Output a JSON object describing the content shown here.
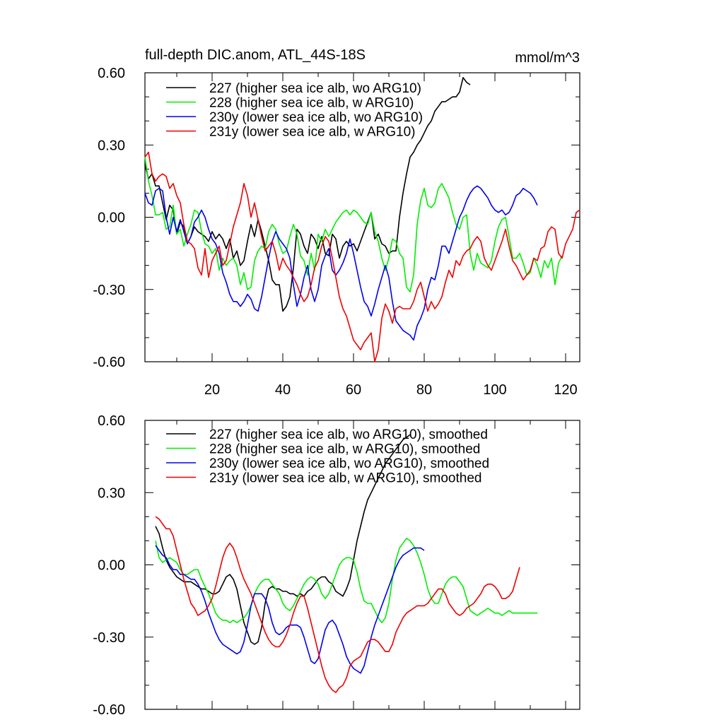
{
  "title": "full-depth DIC.anom, ATL_44S-18S",
  "units": "mmol/m^3",
  "chart_data": [
    {
      "type": "line",
      "panel": "top",
      "title": "full-depth DIC.anom, ATL_44S-18S",
      "units": "mmol/m^3",
      "xlim": [
        1,
        124
      ],
      "ylim": [
        -0.6,
        0.6
      ],
      "xticks": [
        20,
        40,
        60,
        80,
        100,
        120
      ],
      "xticklabels": [
        "20",
        "40",
        "60",
        "80",
        "100",
        "120"
      ],
      "show_xticklabels": true,
      "yticks": [
        -0.6,
        -0.3,
        0.0,
        0.3,
        0.6
      ],
      "yticklabels": [
        "-0.60",
        "-0.30",
        "0.00",
        "0.30",
        "0.60"
      ],
      "legend_position": "top-left",
      "series": [
        {
          "name": "227 (higher sea ice alb, wo ARG10)",
          "color": "#000000",
          "x_start": 1,
          "values": [
            0.22,
            0.16,
            0.18,
            0.13,
            0.13,
            0.06,
            -0.01,
            0.05,
            0.03,
            -0.07,
            -0.02,
            -0.04,
            -0.11,
            -0.08,
            -0.04,
            -0.06,
            -0.07,
            -0.08,
            -0.1,
            -0.06,
            -0.09,
            -0.07,
            -0.09,
            -0.13,
            -0.09,
            -0.17,
            -0.14,
            -0.2,
            -0.18,
            -0.1,
            -0.03,
            -0.08,
            -0.01,
            -0.06,
            -0.12,
            -0.18,
            -0.26,
            -0.28,
            -0.28,
            -0.39,
            -0.37,
            -0.33,
            -0.21,
            -0.05,
            -0.07,
            -0.12,
            -0.15,
            -0.07,
            -0.09,
            -0.13,
            -0.08,
            -0.15,
            -0.16,
            -0.07,
            -0.09,
            -0.17,
            -0.12,
            -0.1,
            -0.12,
            -0.11,
            -0.14,
            -0.1,
            -0.06,
            -0.02,
            0.02,
            -0.09,
            -0.07,
            -0.11,
            -0.12,
            -0.15,
            -0.14,
            -0.14,
            0.0,
            0.1,
            0.18,
            0.25,
            0.27,
            0.3,
            0.32,
            0.35,
            0.38,
            0.4,
            0.44,
            0.46,
            0.48,
            0.48,
            0.49,
            0.5,
            0.5,
            0.52,
            0.58,
            0.56,
            0.55
          ]
        },
        {
          "name": "228 (higher sea ice alb, w ARG10)",
          "color": "#00ee00",
          "x_start": 1,
          "values": [
            0.25,
            0.15,
            0.09,
            0.01,
            0.01,
            0.02,
            -0.05,
            -0.04,
            0.05,
            -0.07,
            -0.05,
            -0.12,
            -0.07,
            -0.03,
            0.03,
            0.02,
            -0.06,
            -0.11,
            -0.12,
            -0.15,
            -0.13,
            -0.22,
            -0.17,
            -0.2,
            -0.18,
            -0.17,
            -0.2,
            -0.28,
            -0.23,
            -0.3,
            -0.29,
            -0.18,
            -0.14,
            -0.12,
            -0.13,
            -0.06,
            -0.03,
            -0.05,
            -0.11,
            -0.15,
            -0.14,
            -0.08,
            -0.03,
            -0.07,
            -0.16,
            -0.18,
            -0.24,
            -0.15,
            -0.22,
            -0.07,
            -0.1,
            -0.05,
            -0.08,
            -0.05,
            -0.02,
            0.0,
            0.02,
            0.03,
            0.01,
            0.03,
            0.02,
            0.0,
            -0.02,
            -0.03,
            0.02,
            -0.06,
            -0.1,
            -0.17,
            -0.22,
            -0.17,
            -0.09,
            -0.1,
            -0.15,
            -0.17,
            -0.29,
            -0.31,
            -0.24,
            -0.03,
            0.07,
            0.12,
            0.05,
            0.04,
            0.06,
            0.12,
            0.14,
            0.11,
            0.08,
            0.02,
            -0.03,
            -0.05,
            0.0,
            0.01,
            -0.15,
            -0.22,
            -0.15,
            -0.19,
            -0.2,
            -0.21,
            -0.18,
            -0.1,
            -0.04,
            -0.01,
            0.0,
            -0.08,
            -0.17,
            -0.17,
            -0.15,
            -0.19,
            -0.24,
            -0.23,
            -0.17,
            -0.2,
            -0.25,
            -0.18,
            -0.21,
            -0.17,
            -0.28,
            -0.19,
            -0.16
          ]
        },
        {
          "name": "230y (lower sea ice alb, wo ARG10)",
          "color": "#0000ee",
          "x_start": 1,
          "values": [
            0.1,
            0.06,
            0.05,
            0.11,
            0.12,
            0.11,
            0.0,
            -0.07,
            0.0,
            -0.06,
            -0.01,
            -0.06,
            -0.11,
            -0.08,
            -0.02,
            0.0,
            0.03,
            0.0,
            -0.05,
            -0.09,
            -0.11,
            -0.15,
            -0.23,
            -0.27,
            -0.32,
            -0.35,
            -0.35,
            -0.37,
            -0.35,
            -0.32,
            -0.34,
            -0.38,
            -0.39,
            -0.33,
            -0.25,
            -0.17,
            -0.1,
            -0.06,
            -0.09,
            -0.11,
            -0.13,
            -0.17,
            -0.28,
            -0.37,
            -0.32,
            -0.25,
            -0.2,
            -0.3,
            -0.35,
            -0.3,
            -0.2,
            -0.16,
            -0.13,
            -0.22,
            -0.24,
            -0.22,
            -0.19,
            -0.15,
            -0.09,
            -0.15,
            -0.22,
            -0.29,
            -0.35,
            -0.37,
            -0.41,
            -0.36,
            -0.3,
            -0.25,
            -0.2,
            -0.25,
            -0.35,
            -0.43,
            -0.45,
            -0.47,
            -0.48,
            -0.49,
            -0.51,
            -0.45,
            -0.42,
            -0.38,
            -0.3,
            -0.25,
            -0.26,
            -0.2,
            -0.12,
            -0.12,
            -0.15,
            -0.1,
            -0.05,
            0.0,
            0.03,
            0.07,
            0.1,
            0.12,
            0.13,
            0.12,
            0.1,
            0.08,
            0.05,
            0.03,
            0.02,
            0.03,
            0.01,
            0.02,
            0.05,
            0.09,
            0.1,
            0.12,
            0.11,
            0.1,
            0.08,
            0.05
          ]
        },
        {
          "name": "231y (lower sea ice alb, w ARG10)",
          "color": "#ee0000",
          "x_start": 1,
          "values": [
            0.25,
            0.27,
            0.18,
            0.15,
            0.17,
            0.18,
            0.17,
            0.12,
            0.14,
            0.09,
            0.06,
            -0.03,
            -0.1,
            -0.11,
            -0.13,
            -0.21,
            -0.24,
            -0.13,
            -0.25,
            -0.18,
            -0.15,
            -0.12,
            -0.2,
            -0.18,
            -0.11,
            -0.04,
            0.01,
            0.06,
            0.14,
            0.09,
            0.0,
            0.06,
            -0.01,
            -0.08,
            -0.14,
            -0.12,
            -0.1,
            -0.15,
            -0.22,
            -0.17,
            -0.2,
            -0.22,
            -0.25,
            -0.28,
            -0.32,
            -0.35,
            -0.33,
            -0.28,
            -0.21,
            -0.18,
            -0.12,
            -0.08,
            -0.1,
            -0.17,
            -0.25,
            -0.33,
            -0.38,
            -0.41,
            -0.46,
            -0.51,
            -0.53,
            -0.55,
            -0.52,
            -0.5,
            -0.48,
            -0.6,
            -0.55,
            -0.42,
            -0.36,
            -0.39,
            -0.44,
            -0.38,
            -0.37,
            -0.38,
            -0.38,
            -0.38,
            -0.35,
            -0.3,
            -0.27,
            -0.33,
            -0.39,
            -0.35,
            -0.38,
            -0.36,
            -0.33,
            -0.27,
            -0.22,
            -0.25,
            -0.18,
            -0.2,
            -0.16,
            -0.14,
            -0.13,
            -0.1,
            -0.08,
            -0.1,
            -0.17,
            -0.2,
            -0.22,
            -0.18,
            -0.14,
            -0.1,
            -0.05,
            -0.12,
            -0.18,
            -0.2,
            -0.23,
            -0.26,
            -0.24,
            -0.22,
            -0.17,
            -0.18,
            -0.13,
            -0.12,
            -0.06,
            -0.04,
            -0.05,
            -0.15,
            -0.17,
            -0.11,
            -0.08,
            -0.05,
            0.02,
            0.03
          ]
        }
      ]
    },
    {
      "type": "line",
      "panel": "bottom",
      "xlim": [
        1,
        124
      ],
      "ylim": [
        -0.6,
        0.6
      ],
      "xticks": [
        20,
        40,
        60,
        80,
        100,
        120
      ],
      "show_xticklabels": false,
      "yticks": [
        -0.6,
        -0.3,
        0.0,
        0.3,
        0.6
      ],
      "yticklabels": [
        "-0.60",
        "-0.30",
        "0.00",
        "0.30",
        "0.60"
      ],
      "legend_position": "top-left",
      "series": [
        {
          "name": "227 (higher sea ice alb, wo ARG10), smoothed",
          "color": "#000000",
          "x_start": 4,
          "values": [
            0.16,
            0.13,
            0.07,
            0.02,
            -0.01,
            -0.03,
            -0.05,
            -0.06,
            -0.07,
            -0.07,
            -0.07,
            -0.08,
            -0.09,
            -0.1,
            -0.1,
            -0.11,
            -0.12,
            -0.12,
            -0.11,
            -0.08,
            -0.05,
            -0.04,
            -0.06,
            -0.1,
            -0.17,
            -0.24,
            -0.28,
            -0.32,
            -0.33,
            -0.32,
            -0.26,
            -0.16,
            -0.1,
            -0.09,
            -0.1,
            -0.1,
            -0.11,
            -0.11,
            -0.12,
            -0.12,
            -0.13,
            -0.12,
            -0.13,
            -0.11,
            -0.1,
            -0.08,
            -0.06,
            -0.05,
            -0.05,
            -0.07,
            -0.08,
            -0.11,
            -0.12,
            -0.13,
            -0.1,
            -0.06,
            0.02,
            0.1,
            0.16,
            0.22,
            0.27,
            0.3,
            0.33,
            0.36,
            0.39,
            0.42,
            0.44,
            0.46,
            0.48,
            0.5,
            0.52,
            0.53,
            0.54
          ]
        },
        {
          "name": "228 (higher sea ice alb, w ARG10), smoothed",
          "color": "#00ee00",
          "x_start": 4,
          "values": [
            0.1,
            0.03,
            0.01,
            0.02,
            0.03,
            0.02,
            0.01,
            -0.02,
            -0.04,
            -0.04,
            -0.03,
            -0.02,
            -0.02,
            -0.06,
            -0.09,
            -0.12,
            -0.16,
            -0.2,
            -0.22,
            -0.23,
            -0.23,
            -0.24,
            -0.23,
            -0.24,
            -0.23,
            -0.22,
            -0.2,
            -0.17,
            -0.12,
            -0.09,
            -0.07,
            -0.06,
            -0.06,
            -0.08,
            -0.1,
            -0.12,
            -0.16,
            -0.18,
            -0.19,
            -0.17,
            -0.14,
            -0.11,
            -0.08,
            -0.06,
            -0.05,
            -0.06,
            -0.08,
            -0.12,
            -0.14,
            -0.12,
            -0.08,
            -0.04,
            0.0,
            0.02,
            0.03,
            0.03,
            0.02,
            -0.03,
            -0.1,
            -0.15,
            -0.16,
            -0.16,
            -0.19,
            -0.22,
            -0.24,
            -0.22,
            -0.16,
            -0.06,
            0.02,
            0.07,
            0.09,
            0.11,
            0.1,
            0.08,
            0.05,
            0.01,
            -0.04,
            -0.1,
            -0.14,
            -0.16,
            -0.16,
            -0.12,
            -0.08,
            -0.06,
            -0.05,
            -0.05,
            -0.07,
            -0.09,
            -0.14,
            -0.19,
            -0.2,
            -0.21,
            -0.2,
            -0.19,
            -0.18,
            -0.19,
            -0.2,
            -0.2,
            -0.21,
            -0.2,
            -0.19,
            -0.2,
            -0.2,
            -0.2,
            -0.2,
            -0.2,
            -0.2,
            -0.2,
            -0.2
          ]
        },
        {
          "name": "230y (lower sea ice alb, wo ARG10), smoothed",
          "color": "#0000ee",
          "x_start": 4,
          "values": [
            0.08,
            0.06,
            0.04,
            0.03,
            0.0,
            -0.02,
            -0.02,
            -0.04,
            -0.04,
            -0.05,
            -0.06,
            -0.06,
            -0.08,
            -0.11,
            -0.15,
            -0.2,
            -0.24,
            -0.28,
            -0.31,
            -0.33,
            -0.34,
            -0.35,
            -0.36,
            -0.37,
            -0.36,
            -0.32,
            -0.25,
            -0.17,
            -0.12,
            -0.12,
            -0.12,
            -0.14,
            -0.18,
            -0.24,
            -0.28,
            -0.29,
            -0.28,
            -0.26,
            -0.25,
            -0.25,
            -0.25,
            -0.26,
            -0.3,
            -0.35,
            -0.4,
            -0.41,
            -0.39,
            -0.33,
            -0.27,
            -0.24,
            -0.23,
            -0.25,
            -0.29,
            -0.33,
            -0.38,
            -0.41,
            -0.43,
            -0.44,
            -0.45,
            -0.42,
            -0.36,
            -0.3,
            -0.25,
            -0.21,
            -0.17,
            -0.13,
            -0.09,
            -0.05,
            -0.01,
            0.02,
            0.04,
            0.05,
            0.06,
            0.07,
            0.07,
            0.07,
            0.06
          ]
        },
        {
          "name": "231y (lower sea ice alb, w ARG10), smoothed",
          "color": "#ee0000",
          "x_start": 4,
          "values": [
            0.2,
            0.19,
            0.17,
            0.15,
            0.15,
            0.12,
            0.06,
            0.0,
            -0.06,
            -0.11,
            -0.16,
            -0.18,
            -0.21,
            -0.2,
            -0.19,
            -0.17,
            -0.14,
            -0.09,
            -0.03,
            0.03,
            0.07,
            0.09,
            0.07,
            0.03,
            -0.02,
            -0.06,
            -0.09,
            -0.12,
            -0.16,
            -0.2,
            -0.24,
            -0.28,
            -0.31,
            -0.33,
            -0.34,
            -0.34,
            -0.32,
            -0.29,
            -0.25,
            -0.2,
            -0.16,
            -0.13,
            -0.13,
            -0.18,
            -0.24,
            -0.3,
            -0.36,
            -0.42,
            -0.47,
            -0.5,
            -0.52,
            -0.53,
            -0.51,
            -0.5,
            -0.47,
            -0.42,
            -0.4,
            -0.39,
            -0.38,
            -0.35,
            -0.32,
            -0.31,
            -0.31,
            -0.32,
            -0.34,
            -0.36,
            -0.36,
            -0.33,
            -0.28,
            -0.25,
            -0.22,
            -0.2,
            -0.19,
            -0.18,
            -0.17,
            -0.17,
            -0.17,
            -0.16,
            -0.14,
            -0.12,
            -0.1,
            -0.1,
            -0.12,
            -0.16,
            -0.18,
            -0.2,
            -0.21,
            -0.2,
            -0.18,
            -0.17,
            -0.16,
            -0.14,
            -0.12,
            -0.09,
            -0.08,
            -0.08,
            -0.09,
            -0.11,
            -0.14,
            -0.14,
            -0.13,
            -0.11,
            -0.06,
            -0.01
          ]
        }
      ]
    }
  ]
}
